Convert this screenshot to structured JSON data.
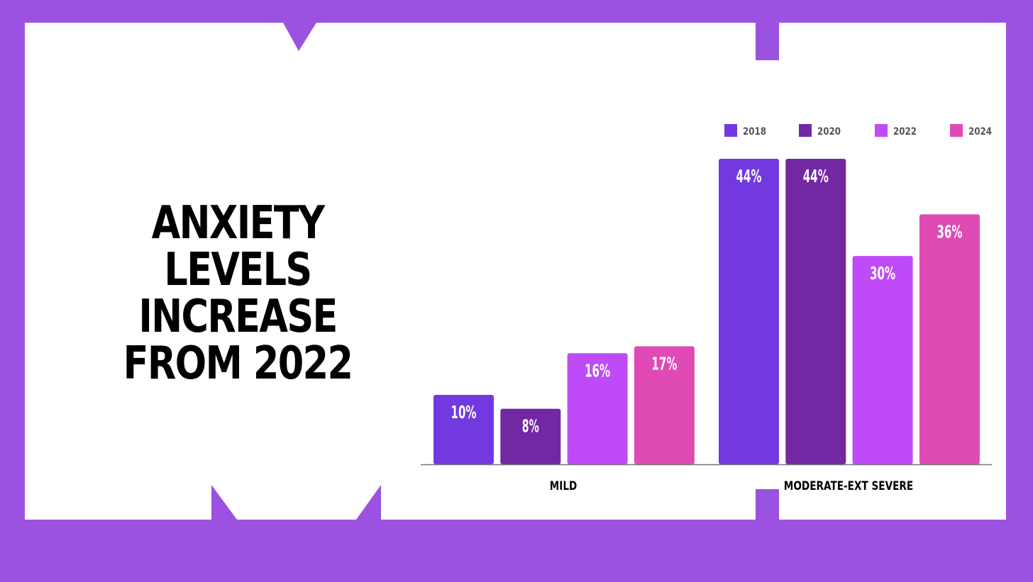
{
  "colors": {
    "background": "#9b52e0",
    "panel": "#ffffff",
    "text": "#000000"
  },
  "title": "ANXIETY LEVELS INCREASE FROM 2022",
  "chart_data": {
    "type": "bar",
    "title": "",
    "xlabel": "",
    "ylabel": "",
    "categories": [
      "MILD",
      "MODERATE-EXT SEVERE"
    ],
    "series": [
      {
        "name": "2018",
        "values": [
          10,
          44
        ],
        "labels": [
          "10%",
          "44%"
        ],
        "color": "#7339e0"
      },
      {
        "name": "2020",
        "values": [
          8,
          44
        ],
        "labels": [
          "8%",
          "44%"
        ],
        "color": "#7228a3"
      },
      {
        "name": "2022",
        "values": [
          16,
          30
        ],
        "labels": [
          "16%",
          "30%"
        ],
        "color": "#bf4bf8"
      },
      {
        "name": "2024",
        "values": [
          17,
          36
        ],
        "labels": [
          "17%",
          "36%"
        ],
        "color": "#e04ab4"
      }
    ],
    "ylim": [
      0,
      44
    ],
    "grid": false,
    "legend": "top-right"
  }
}
